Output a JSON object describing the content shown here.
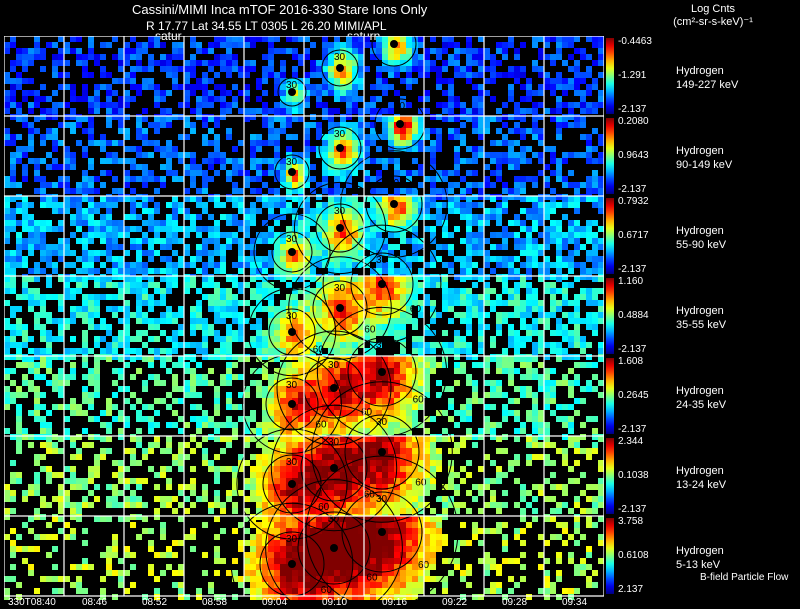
{
  "header": {
    "title_line": "Cassini/MIMI Inca mTOF  2016-330    Stare   Ions Only",
    "info_line": "R        17.77 Lat 34.55 LT 0305 L         26.20  MIMI/APL",
    "saturn_labels": [
      "satur",
      "saturn"
    ]
  },
  "colorbar_title": {
    "line1": "Log Cnts",
    "line2": "(cm²-sr-s-keV)⁻¹"
  },
  "bands": [
    {
      "species": "Hydrogen",
      "energy": "149-227 keV",
      "cb_max": "-0.4463",
      "cb_mid": "-1.291",
      "cb_min": "-2.137"
    },
    {
      "species": "Hydrogen",
      "energy": "90-149 keV",
      "cb_max": "0.2080",
      "cb_mid": "0.9643",
      "cb_min": "-2.137"
    },
    {
      "species": "Hydrogen",
      "energy": "55-90 keV",
      "cb_max": "0.7932",
      "cb_mid": "0.6717",
      "cb_min": "-2.137"
    },
    {
      "species": "Hydrogen",
      "energy": "35-55 keV",
      "cb_max": "1.160",
      "cb_mid": "0.4884",
      "cb_min": "-2.137"
    },
    {
      "species": "Hydrogen",
      "energy": "24-35 keV",
      "cb_max": "1.608",
      "cb_mid": "0.2645",
      "cb_min": "-2.137"
    },
    {
      "species": "Hydrogen",
      "energy": "13-24 keV",
      "cb_max": "2.344",
      "cb_mid": "0.1038",
      "cb_min": "-2.137"
    },
    {
      "species": "Hydrogen",
      "energy": "5-13 keV",
      "cb_max": "3.758",
      "cb_mid": "0.6108",
      "cb_min": "2.137"
    }
  ],
  "time_labels": [
    "330T08:40",
    "08:46",
    "08:52",
    "08:58",
    "09:04",
    "09:10",
    "09:16",
    "09:22",
    "09:28",
    "09:34"
  ],
  "contour_labels": [
    "30",
    "60"
  ],
  "footer_note": "B-field Particle Flow"
}
